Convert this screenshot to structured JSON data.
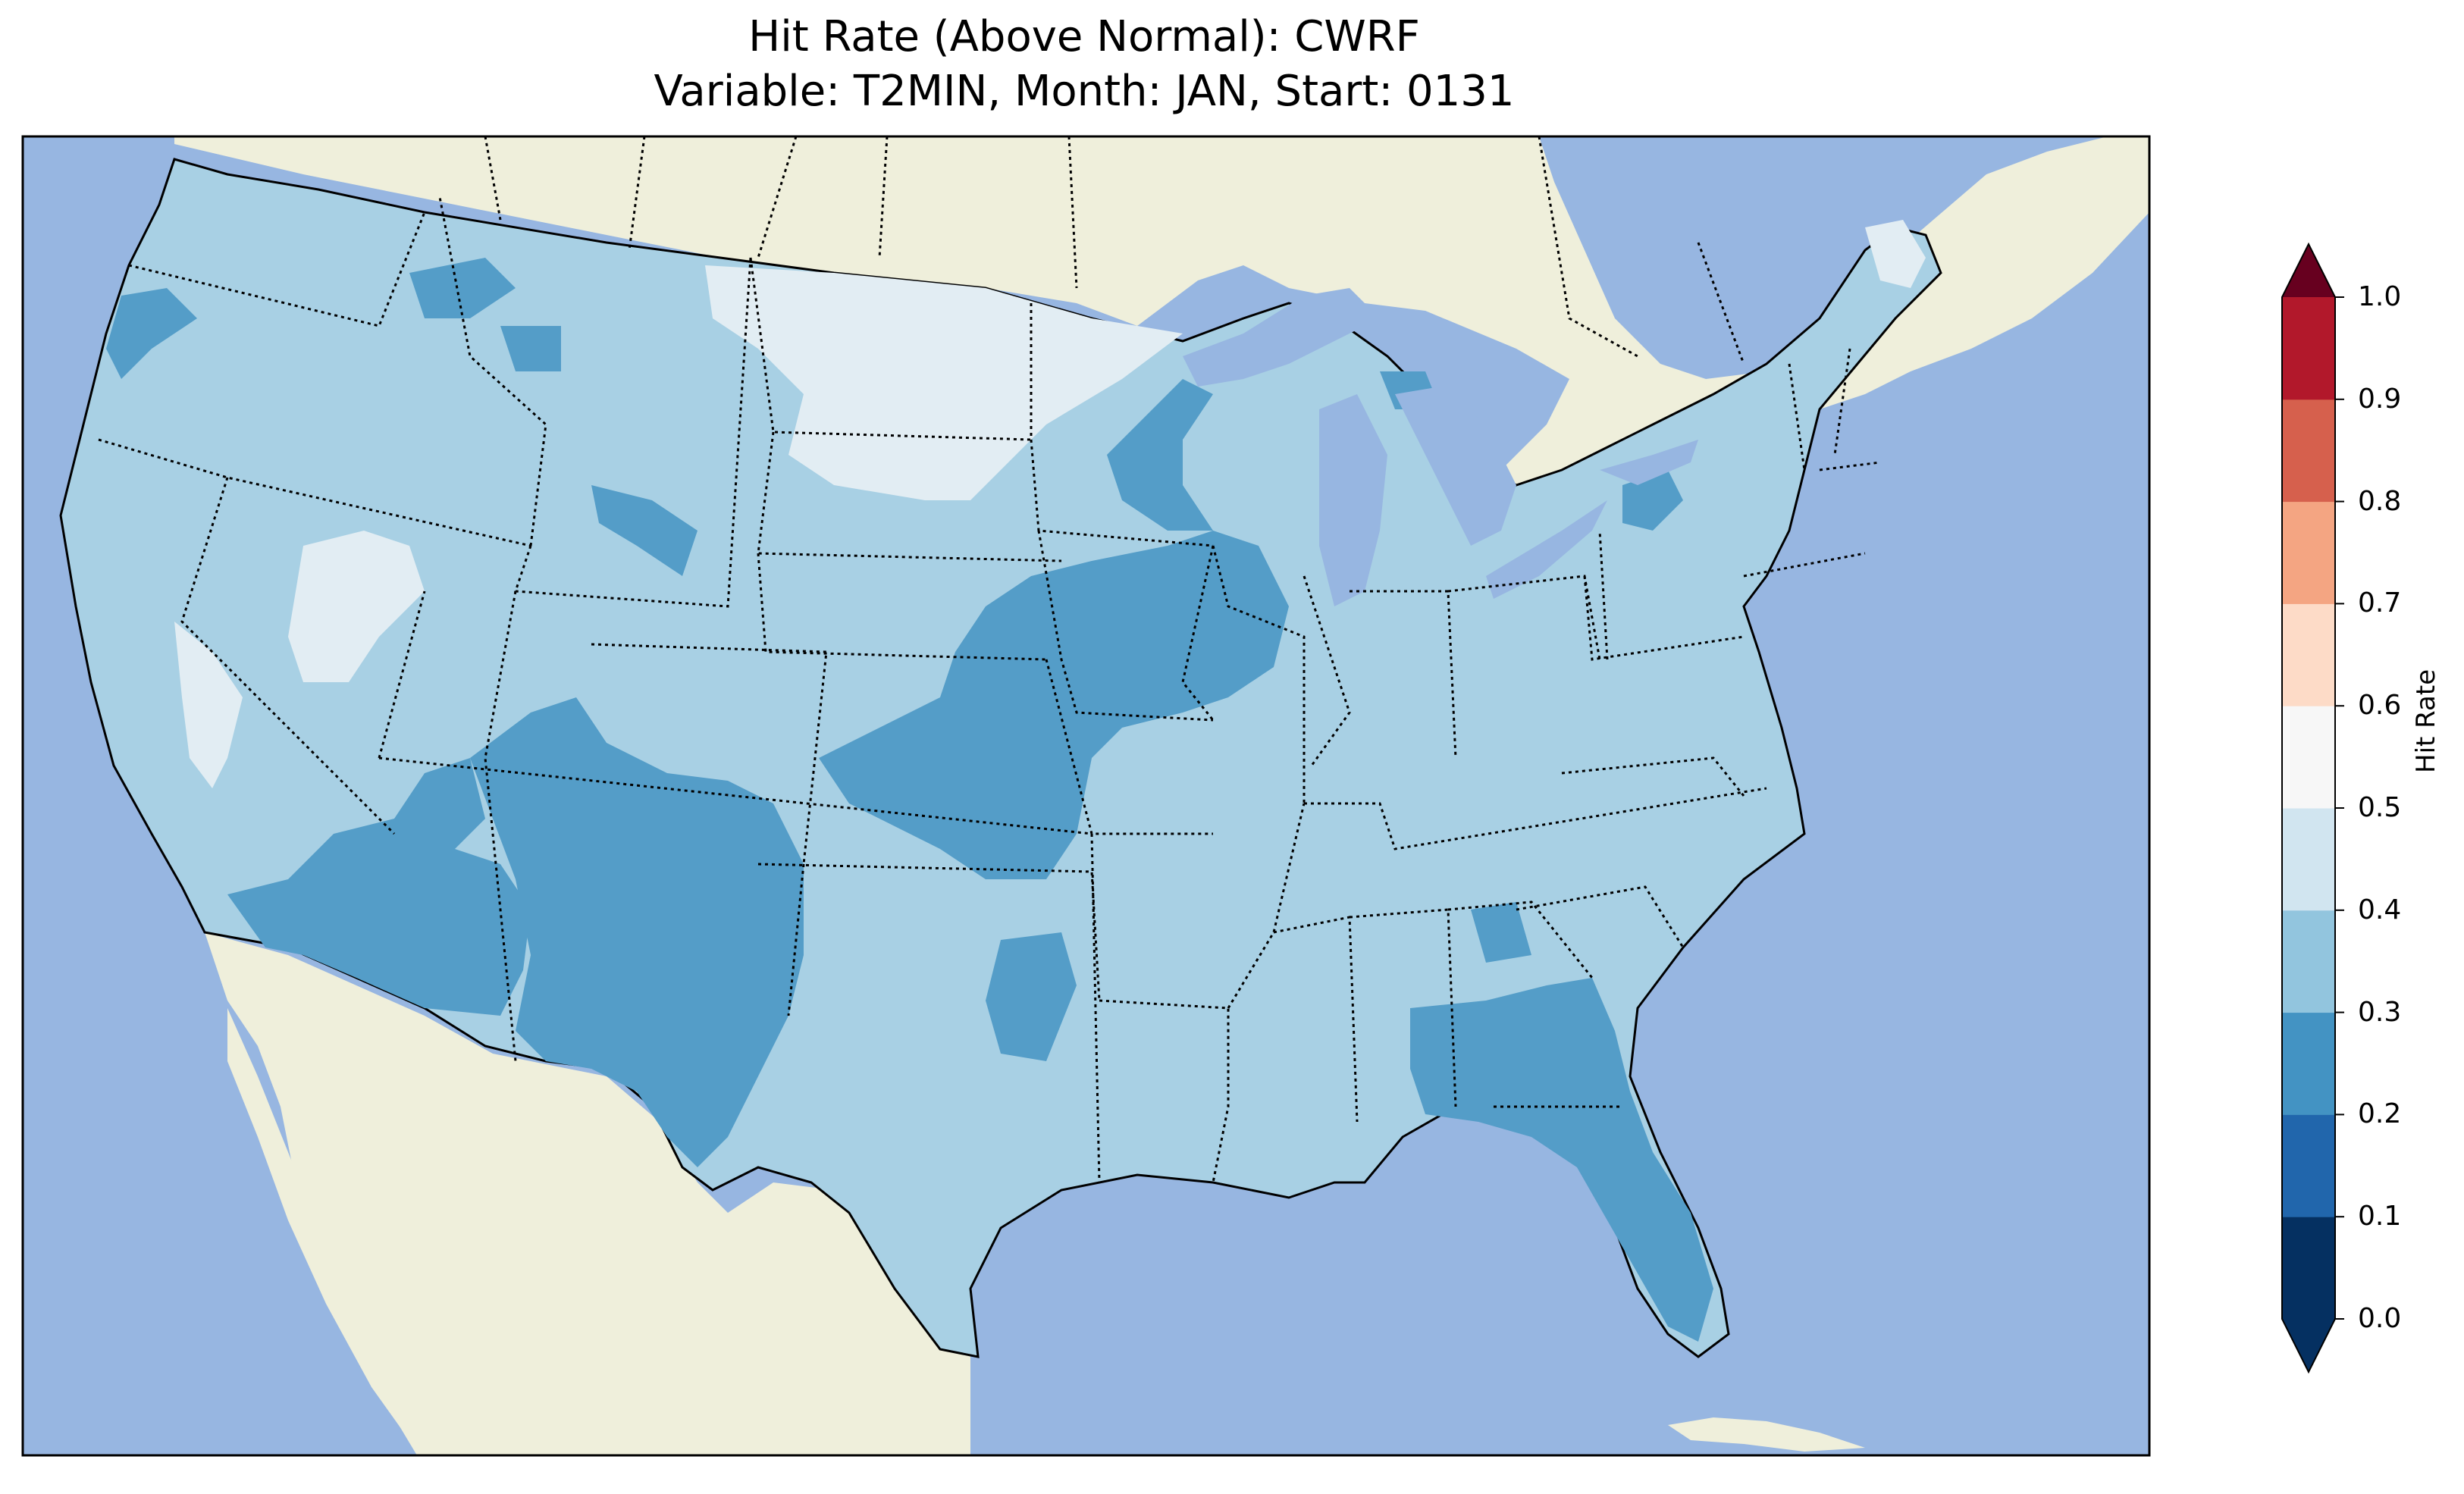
{
  "title": "Hit Rate (Above Normal): CWRF",
  "subtitle": "Variable: T2MIN, Month: JAN, Start: 0131",
  "colorbar": {
    "label": "Hit Rate",
    "ticks": [
      "0.0",
      "0.1",
      "0.2",
      "0.3",
      "0.4",
      "0.5",
      "0.6",
      "0.7",
      "0.8",
      "0.9",
      "1.0"
    ],
    "colors": [
      "#053061",
      "#2166ac",
      "#4393c3",
      "#92c5de",
      "#d1e5f0",
      "#f7f7f7",
      "#fddbc7",
      "#f4a582",
      "#d6604d",
      "#b2182b",
      "#67001f"
    ]
  },
  "map_colors": {
    "ocean": "#97b6e1",
    "land": "#efefdb",
    "bin_0_2_0_3": "#549dc8",
    "bin_0_3_0_4": "#a8d0e4",
    "bin_0_4_0_5": "#e2edf3"
  }
}
